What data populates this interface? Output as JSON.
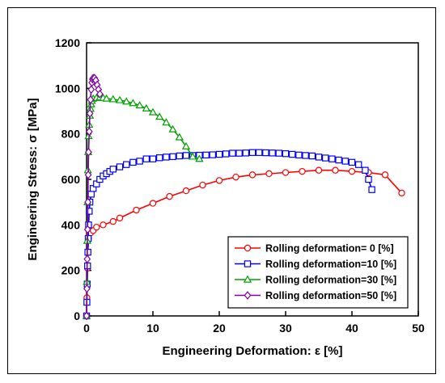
{
  "chart_data": {
    "type": "line",
    "xlabel": "Engineering Deformation: ε [%]",
    "ylabel": "Engineering Stress: σ [MPa]",
    "xlim": [
      0,
      50
    ],
    "ylim": [
      0,
      1200
    ],
    "xticks": [
      0,
      10,
      20,
      30,
      40,
      50
    ],
    "yticks": [
      0,
      200,
      400,
      600,
      800,
      1000,
      1200
    ],
    "grid": false,
    "legend_position": "bottom-right",
    "series": [
      {
        "name": "Rolling deformation= 0 [%]",
        "color": "#ff0000",
        "marker": "circle",
        "x": [
          0,
          0.05,
          0.1,
          0.15,
          0.2,
          0.3,
          0.4,
          0.6,
          1.0,
          1.5,
          2.5,
          4.0,
          5.0,
          7.5,
          10.0,
          12.5,
          15.0,
          17.5,
          20.0,
          22.5,
          25.0,
          27.5,
          30.0,
          32.5,
          35.0,
          37.5,
          40.0,
          42.5,
          45.0,
          47.5
        ],
        "y": [
          0,
          80,
          140,
          210,
          280,
          340,
          360,
          365,
          375,
          390,
          400,
          415,
          430,
          465,
          495,
          525,
          550,
          575,
          595,
          610,
          620,
          625,
          630,
          635,
          640,
          640,
          635,
          630,
          620,
          540
        ]
      },
      {
        "name": "Rolling deformation=10 [%]",
        "color": "#0000ff",
        "marker": "square",
        "x": [
          0,
          0.05,
          0.1,
          0.15,
          0.2,
          0.25,
          0.3,
          0.4,
          0.5,
          0.7,
          1.0,
          1.5,
          2.0,
          2.5,
          3.0,
          3.5,
          4.0,
          5.0,
          6.0,
          7.0,
          8.0,
          9.0,
          10.0,
          11.0,
          12.0,
          13.0,
          14.0,
          15.0,
          16.0,
          17.0,
          18.0,
          19.0,
          20.0,
          21.0,
          22.0,
          23.0,
          24.0,
          25.0,
          26.0,
          27.0,
          28.0,
          29.0,
          30.0,
          31.0,
          32.0,
          33.0,
          34.0,
          35.0,
          36.0,
          37.0,
          38.0,
          39.0,
          40.0,
          41.0,
          42.0,
          42.5,
          43.0
        ],
        "y": [
          0,
          60,
          140,
          220,
          280,
          340,
          400,
          460,
          500,
          535,
          560,
          580,
          600,
          615,
          625,
          635,
          645,
          655,
          665,
          675,
          680,
          690,
          690,
          695,
          698,
          700,
          703,
          705,
          705,
          706,
          707,
          708,
          710,
          712,
          715,
          715,
          716,
          718,
          718,
          717,
          716,
          715,
          713,
          710,
          707,
          705,
          703,
          698,
          694,
          690,
          685,
          680,
          675,
          665,
          640,
          600,
          555
        ]
      },
      {
        "name": "Rolling deformation=30 [%]",
        "color": "#00a000",
        "marker": "triangle",
        "x": [
          0,
          0.05,
          0.1,
          0.15,
          0.2,
          0.25,
          0.3,
          0.4,
          0.5,
          0.6,
          0.7,
          0.8,
          1.0,
          1.5,
          2.0,
          2.5,
          3.0,
          4.0,
          5.0,
          6.0,
          7.0,
          8.0,
          9.0,
          10.0,
          11.0,
          12.0,
          13.0,
          14.0,
          15.0,
          16.0,
          17.0
        ],
        "y": [
          0,
          150,
          330,
          500,
          640,
          720,
          790,
          840,
          880,
          910,
          930,
          945,
          955,
          958,
          960,
          958,
          955,
          952,
          948,
          942,
          935,
          925,
          912,
          895,
          875,
          850,
          820,
          785,
          745,
          700,
          690
        ]
      },
      {
        "name": "Rolling deformation=50 [%]",
        "color": "#8000a0",
        "marker": "diamond",
        "x": [
          0,
          0.05,
          0.1,
          0.15,
          0.2,
          0.25,
          0.3,
          0.4,
          0.5,
          0.6,
          0.7,
          0.8,
          0.9,
          1.0,
          1.2,
          1.4,
          1.6,
          1.8,
          2.0
        ],
        "y": [
          0,
          120,
          250,
          380,
          500,
          620,
          720,
          810,
          890,
          950,
          995,
          1025,
          1040,
          1045,
          1045,
          1035,
          1015,
          995,
          975
        ]
      }
    ]
  }
}
